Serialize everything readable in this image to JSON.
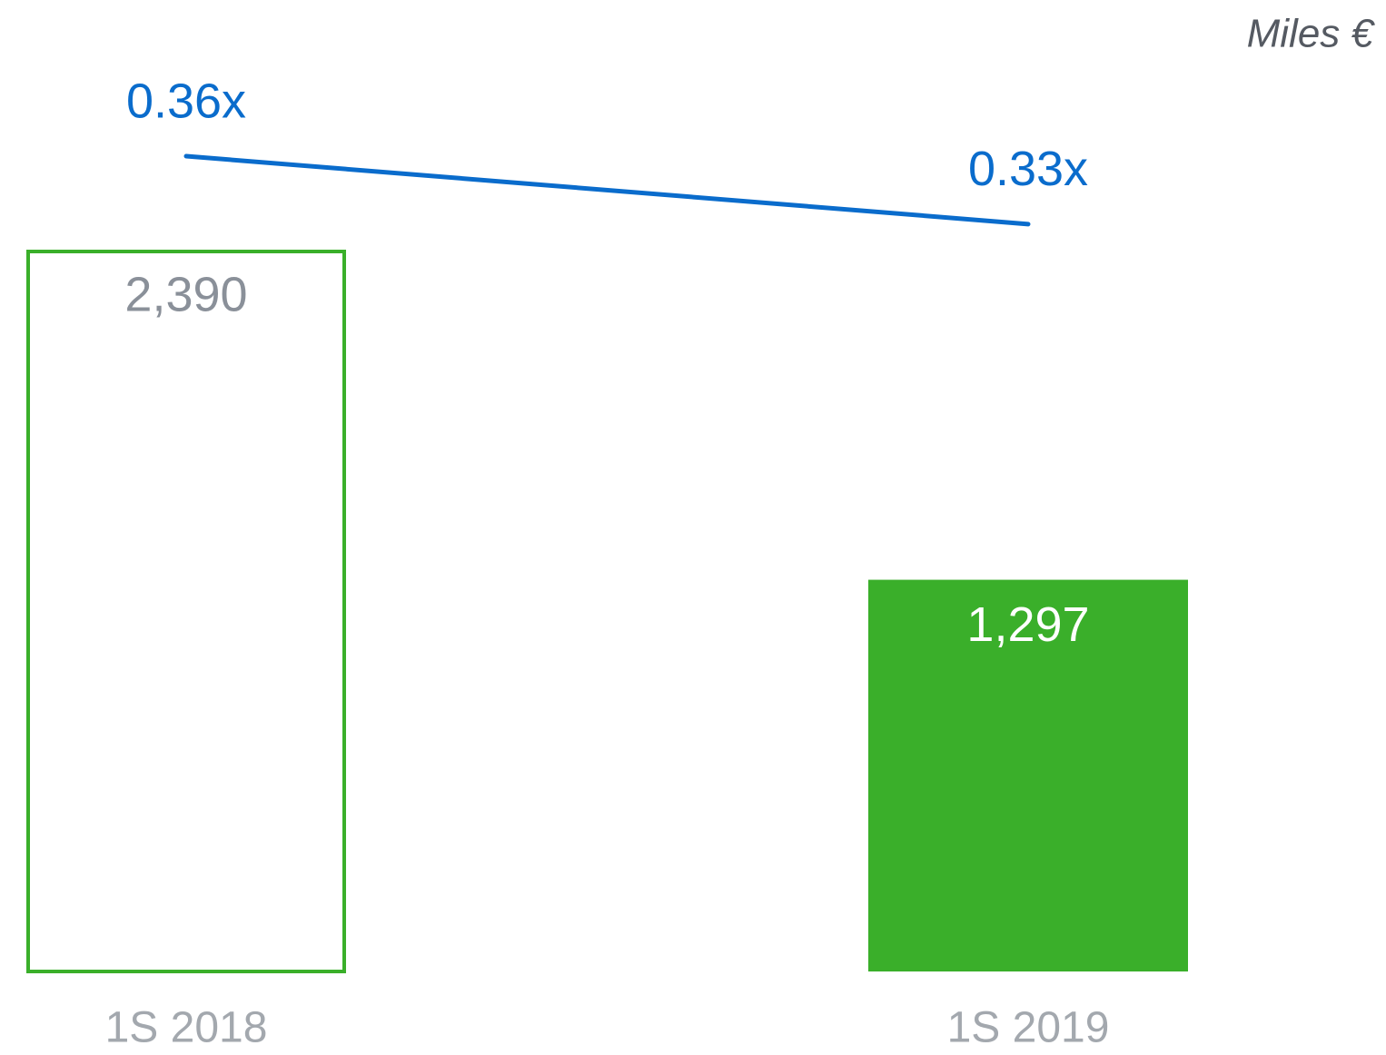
{
  "chart_data": {
    "type": "bar",
    "unit_label": "Miles €",
    "categories": [
      "1S 2018",
      "1S 2019"
    ],
    "series": [
      {
        "values": [
          2390,
          1297
        ],
        "value_labels": [
          "2,390",
          "1,297"
        ],
        "color": "#3aaf2a"
      }
    ],
    "line": {
      "values": [
        0.36,
        0.33
      ],
      "value_labels": [
        "0.36x",
        "0.33x"
      ],
      "color": "#0a6ccc",
      "axis": "y2"
    }
  }
}
